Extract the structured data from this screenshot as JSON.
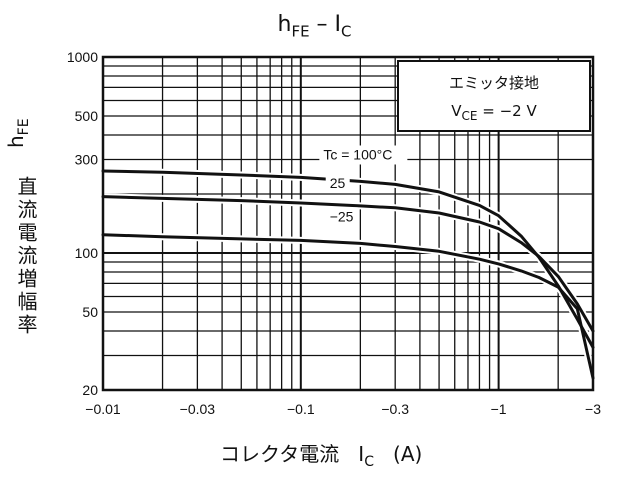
{
  "chart_data": {
    "type": "line",
    "title_main": "h",
    "title_sub": "FE",
    "title_dash": " – I",
    "title_sub2": "C",
    "ylabel_text": "直流電流増幅率",
    "ylabel_sym": "h",
    "ylabel_sub": "FE",
    "xlabel_text": "コレクタ電流",
    "xlabel_sym": "I",
    "xlabel_sub": "C",
    "xlabel_unit": "(A)",
    "x_scale": "log",
    "y_scale": "log",
    "xlim": [
      0.01,
      3
    ],
    "ylim": [
      20,
      1000
    ],
    "x_tick_values": [
      0.01,
      0.03,
      0.1,
      0.3,
      1,
      3
    ],
    "x_tick_labels": [
      "−0.01",
      "−0.03",
      "−0.1",
      "−0.3",
      "−1",
      "−3"
    ],
    "y_tick_values": [
      20,
      50,
      100,
      300,
      500,
      1000
    ],
    "y_tick_labels": [
      "20",
      "50",
      "100",
      "300",
      "500",
      "1000"
    ],
    "grid": true,
    "legend": {
      "position": "top-right",
      "line1": "エミッタ接地",
      "line2_pre": "V",
      "line2_sub": "CE",
      "line2_post": " = −2 V"
    },
    "series": [
      {
        "name": "Tc = 100°C",
        "x": [
          0.01,
          0.02,
          0.05,
          0.1,
          0.2,
          0.3,
          0.5,
          0.8,
          1.0,
          1.3,
          1.6,
          2.0,
          2.5,
          3.0
        ],
        "y": [
          262,
          258,
          250,
          243,
          232,
          224,
          205,
          175,
          155,
          122,
          95,
          68,
          46,
          33
        ]
      },
      {
        "name": "25",
        "x": [
          0.01,
          0.02,
          0.05,
          0.1,
          0.2,
          0.3,
          0.5,
          0.8,
          1.0,
          1.3,
          1.6,
          2.0,
          2.5,
          3.0
        ],
        "y": [
          194,
          190,
          185,
          180,
          174,
          170,
          160,
          144,
          133,
          113,
          96,
          76,
          55,
          40
        ]
      },
      {
        "name": "−25",
        "x": [
          0.01,
          0.02,
          0.05,
          0.1,
          0.2,
          0.3,
          0.5,
          0.8,
          1.0,
          1.3,
          1.6,
          2.0,
          2.5,
          3.0
        ],
        "y": [
          124,
          121,
          118,
          116,
          112,
          108,
          102,
          93,
          88,
          81,
          75,
          67,
          52,
          23
        ]
      }
    ]
  }
}
